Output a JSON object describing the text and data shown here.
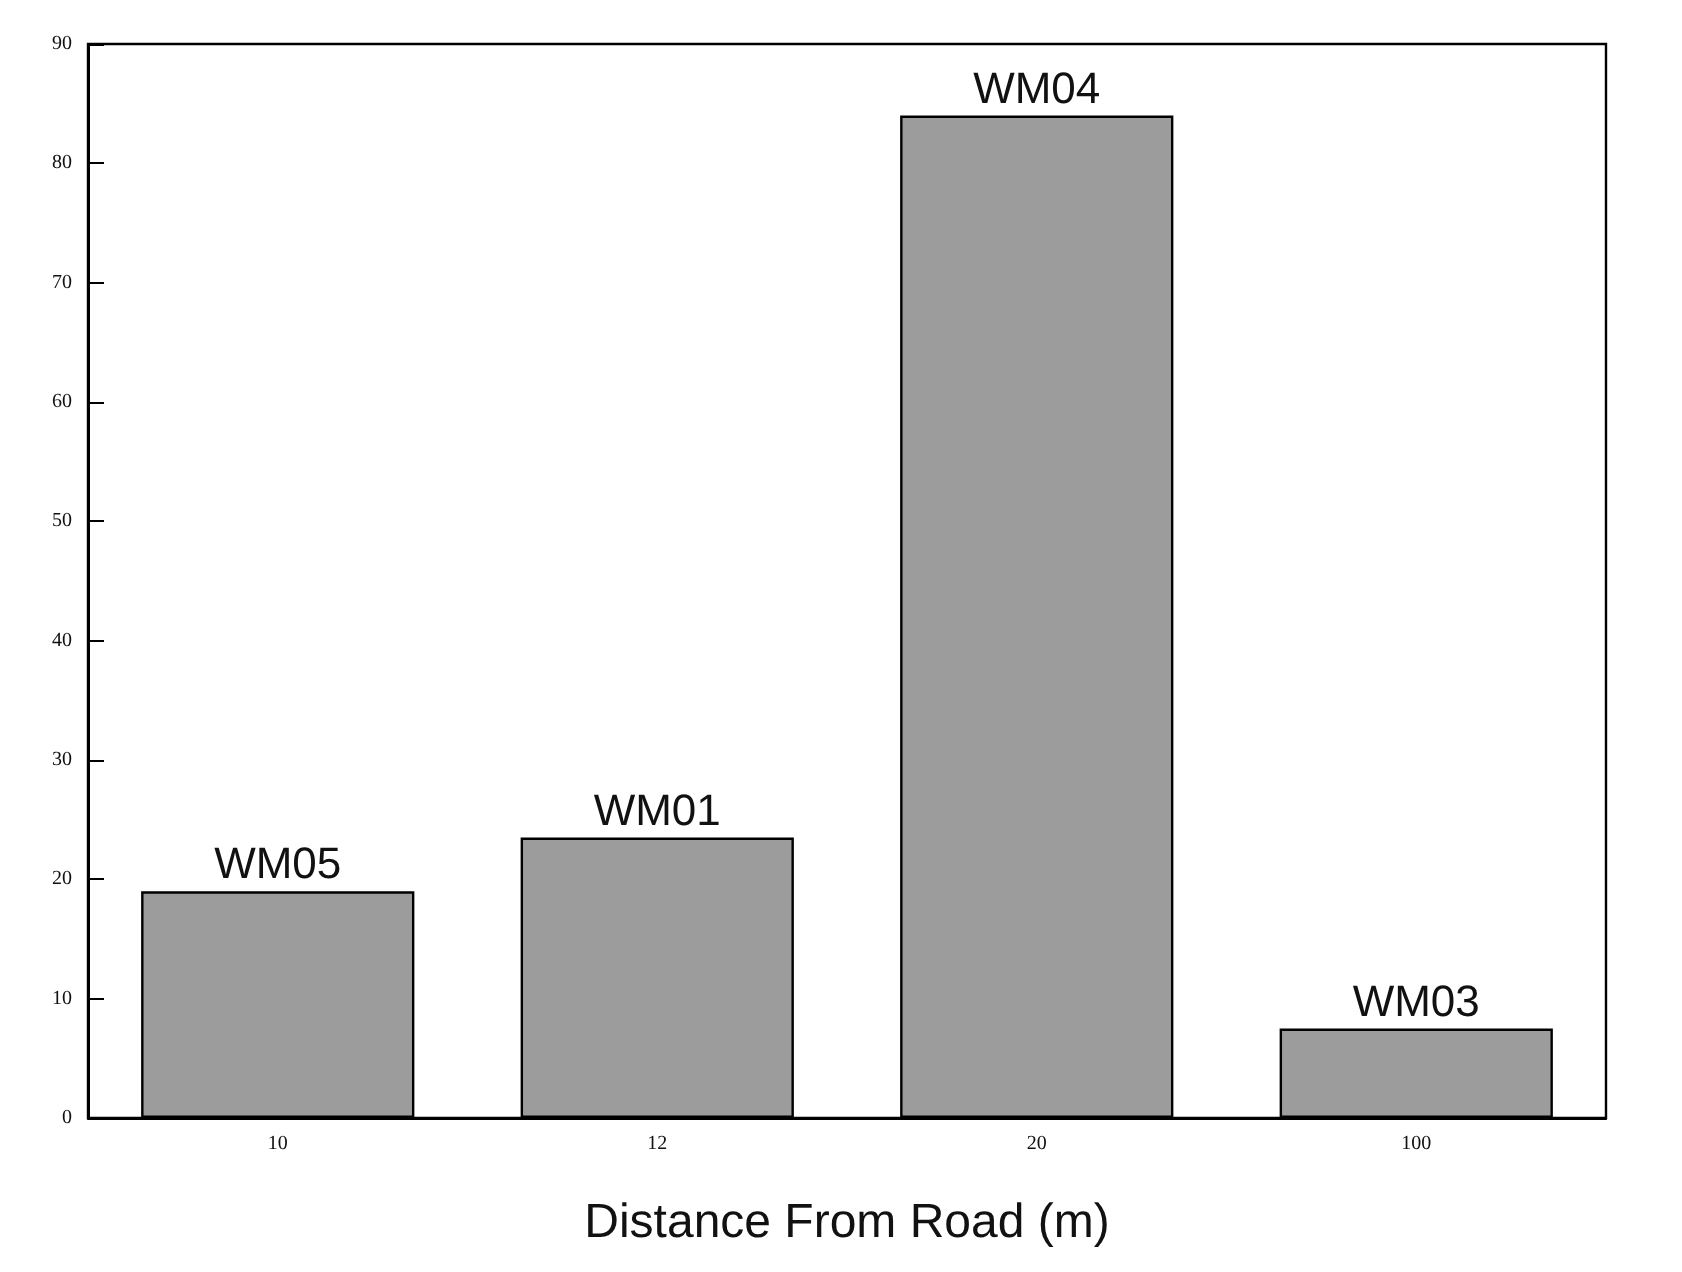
{
  "chart_data": {
    "type": "bar",
    "xlabel": "Distance From Road (m)",
    "categories": [
      "10",
      "12",
      "20",
      "100"
    ],
    "values": [
      19,
      23.5,
      84,
      7.5
    ],
    "color": "#9c9c9c",
    "ylim": [
      0,
      90
    ],
    "yticks": [
      0,
      10,
      20,
      30,
      40,
      50,
      60,
      70,
      80,
      90
    ],
    "grid": false,
    "annotations": [
      {
        "text": "WM05",
        "x": "10",
        "y": 19
      },
      {
        "text": "WM01",
        "x": "12",
        "y": 23.5
      },
      {
        "text": "WM04",
        "x": "20",
        "y": 84
      },
      {
        "text": "WM03",
        "x": "100",
        "y": 7.5
      }
    ]
  }
}
